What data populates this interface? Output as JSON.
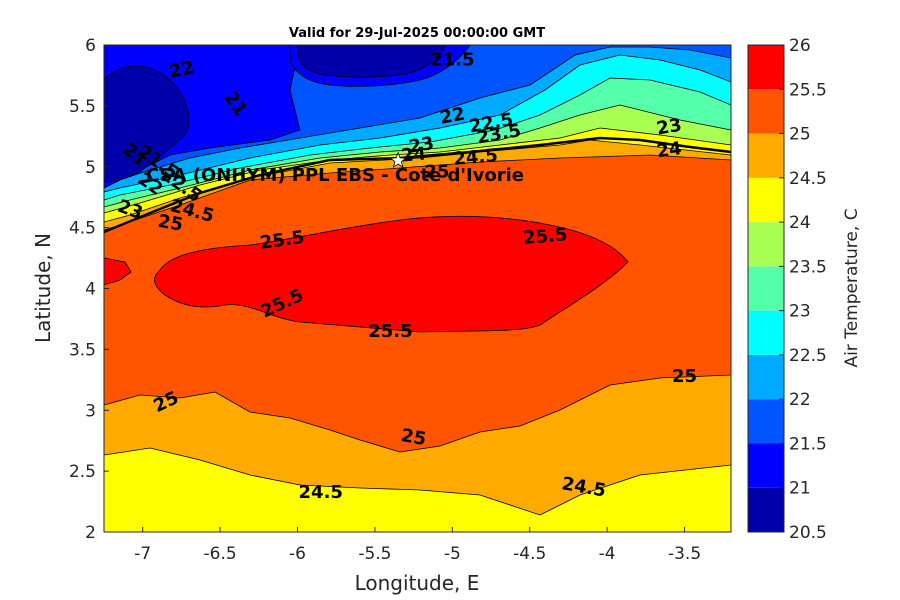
{
  "title": "Valid for 29-Jul-2025 00:00:00 GMT",
  "site_label": "CSA (ONHYM) PPL EBS - Cote d'Ivorie",
  "chart_data": {
    "type": "heatmap",
    "xlabel": "Longitude, E",
    "ylabel": "Latitude, N",
    "xlim": [
      -7.25,
      -3.2
    ],
    "ylim": [
      2,
      6
    ],
    "xticks": [
      -7,
      -6.5,
      -6,
      -5.5,
      -5,
      -4.5,
      -4,
      -3.5
    ],
    "xtick_labels": [
      "-7",
      "-6.5",
      "-6",
      "-5.5",
      "-5",
      "-4.5",
      "-4",
      "-3.5"
    ],
    "yticks": [
      2,
      2.5,
      3,
      3.5,
      4,
      4.5,
      5,
      5.5,
      6
    ],
    "ytick_labels": [
      "2",
      "2.5",
      "3",
      "3.5",
      "4",
      "4.5",
      "5",
      "5.5",
      "6"
    ],
    "colorbar": {
      "label": "Air Temperature, C",
      "range": [
        20.5,
        26
      ],
      "ticks": [
        20.5,
        21,
        21.5,
        22,
        22.5,
        23,
        23.5,
        24,
        24.5,
        25,
        25.5,
        26
      ],
      "tick_labels": [
        "20.5",
        "21",
        "21.5",
        "22",
        "22.5",
        "23",
        "23.5",
        "24",
        "24.5",
        "25",
        "25.5",
        "26"
      ],
      "level_colors": [
        "#0000aa",
        "#0000ff",
        "#0055ff",
        "#00aaff",
        "#00ffff",
        "#55ffaa",
        "#aaff55",
        "#ffff00",
        "#ffaa00",
        "#ff5500",
        "#ff0000"
      ]
    },
    "marker": {
      "lon": -5.35,
      "lat": 5.05
    },
    "contour_labels": [
      {
        "text": "22",
        "lon": -6.75,
        "lat": 5.8,
        "angle": -12
      },
      {
        "text": "21.5",
        "lon": -5.0,
        "lat": 5.88,
        "angle": 0
      },
      {
        "text": "21",
        "lon": -6.4,
        "lat": 5.52,
        "angle": 55
      },
      {
        "text": "22",
        "lon": -5.0,
        "lat": 5.42,
        "angle": -10
      },
      {
        "text": "22.5",
        "lon": -4.75,
        "lat": 5.36,
        "angle": -10
      },
      {
        "text": "23.5",
        "lon": -4.7,
        "lat": 5.27,
        "angle": -10
      },
      {
        "text": "23",
        "lon": -5.2,
        "lat": 5.18,
        "angle": -10
      },
      {
        "text": "24",
        "lon": -5.25,
        "lat": 5.1,
        "angle": -5
      },
      {
        "text": "24.5",
        "lon": -4.85,
        "lat": 5.08,
        "angle": -5
      },
      {
        "text": "25",
        "lon": -5.1,
        "lat": 4.96,
        "angle": 0
      },
      {
        "text": "23",
        "lon": -3.6,
        "lat": 5.33,
        "angle": -10
      },
      {
        "text": "24",
        "lon": -3.6,
        "lat": 5.14,
        "angle": -8
      },
      {
        "text": "21",
        "lon": -7.05,
        "lat": 5.1,
        "angle": 40
      },
      {
        "text": "21.5",
        "lon": -6.9,
        "lat": 5.04,
        "angle": 35
      },
      {
        "text": "22",
        "lon": -6.95,
        "lat": 4.86,
        "angle": 35
      },
      {
        "text": "22.5",
        "lon": -6.75,
        "lat": 4.85,
        "angle": 35
      },
      {
        "text": "23",
        "lon": -7.08,
        "lat": 4.65,
        "angle": 20
      },
      {
        "text": "24.5",
        "lon": -6.68,
        "lat": 4.64,
        "angle": 15
      },
      {
        "text": "25",
        "lon": -6.82,
        "lat": 4.54,
        "angle": 10
      },
      {
        "text": "25.5",
        "lon": -6.1,
        "lat": 4.4,
        "angle": -8
      },
      {
        "text": "25.5",
        "lon": -4.4,
        "lat": 4.43,
        "angle": -5
      },
      {
        "text": "25.5",
        "lon": -6.1,
        "lat": 3.88,
        "angle": -25
      },
      {
        "text": "25.5",
        "lon": -5.4,
        "lat": 3.65,
        "angle": 0
      },
      {
        "text": "25",
        "lon": -3.5,
        "lat": 3.28,
        "angle": 0
      },
      {
        "text": "25",
        "lon": -6.85,
        "lat": 3.07,
        "angle": -25
      },
      {
        "text": "25",
        "lon": -5.25,
        "lat": 2.78,
        "angle": 10
      },
      {
        "text": "24.5",
        "lon": -5.85,
        "lat": 2.33,
        "angle": 0
      },
      {
        "text": "24.5",
        "lon": -4.15,
        "lat": 2.37,
        "angle": 10
      }
    ]
  }
}
